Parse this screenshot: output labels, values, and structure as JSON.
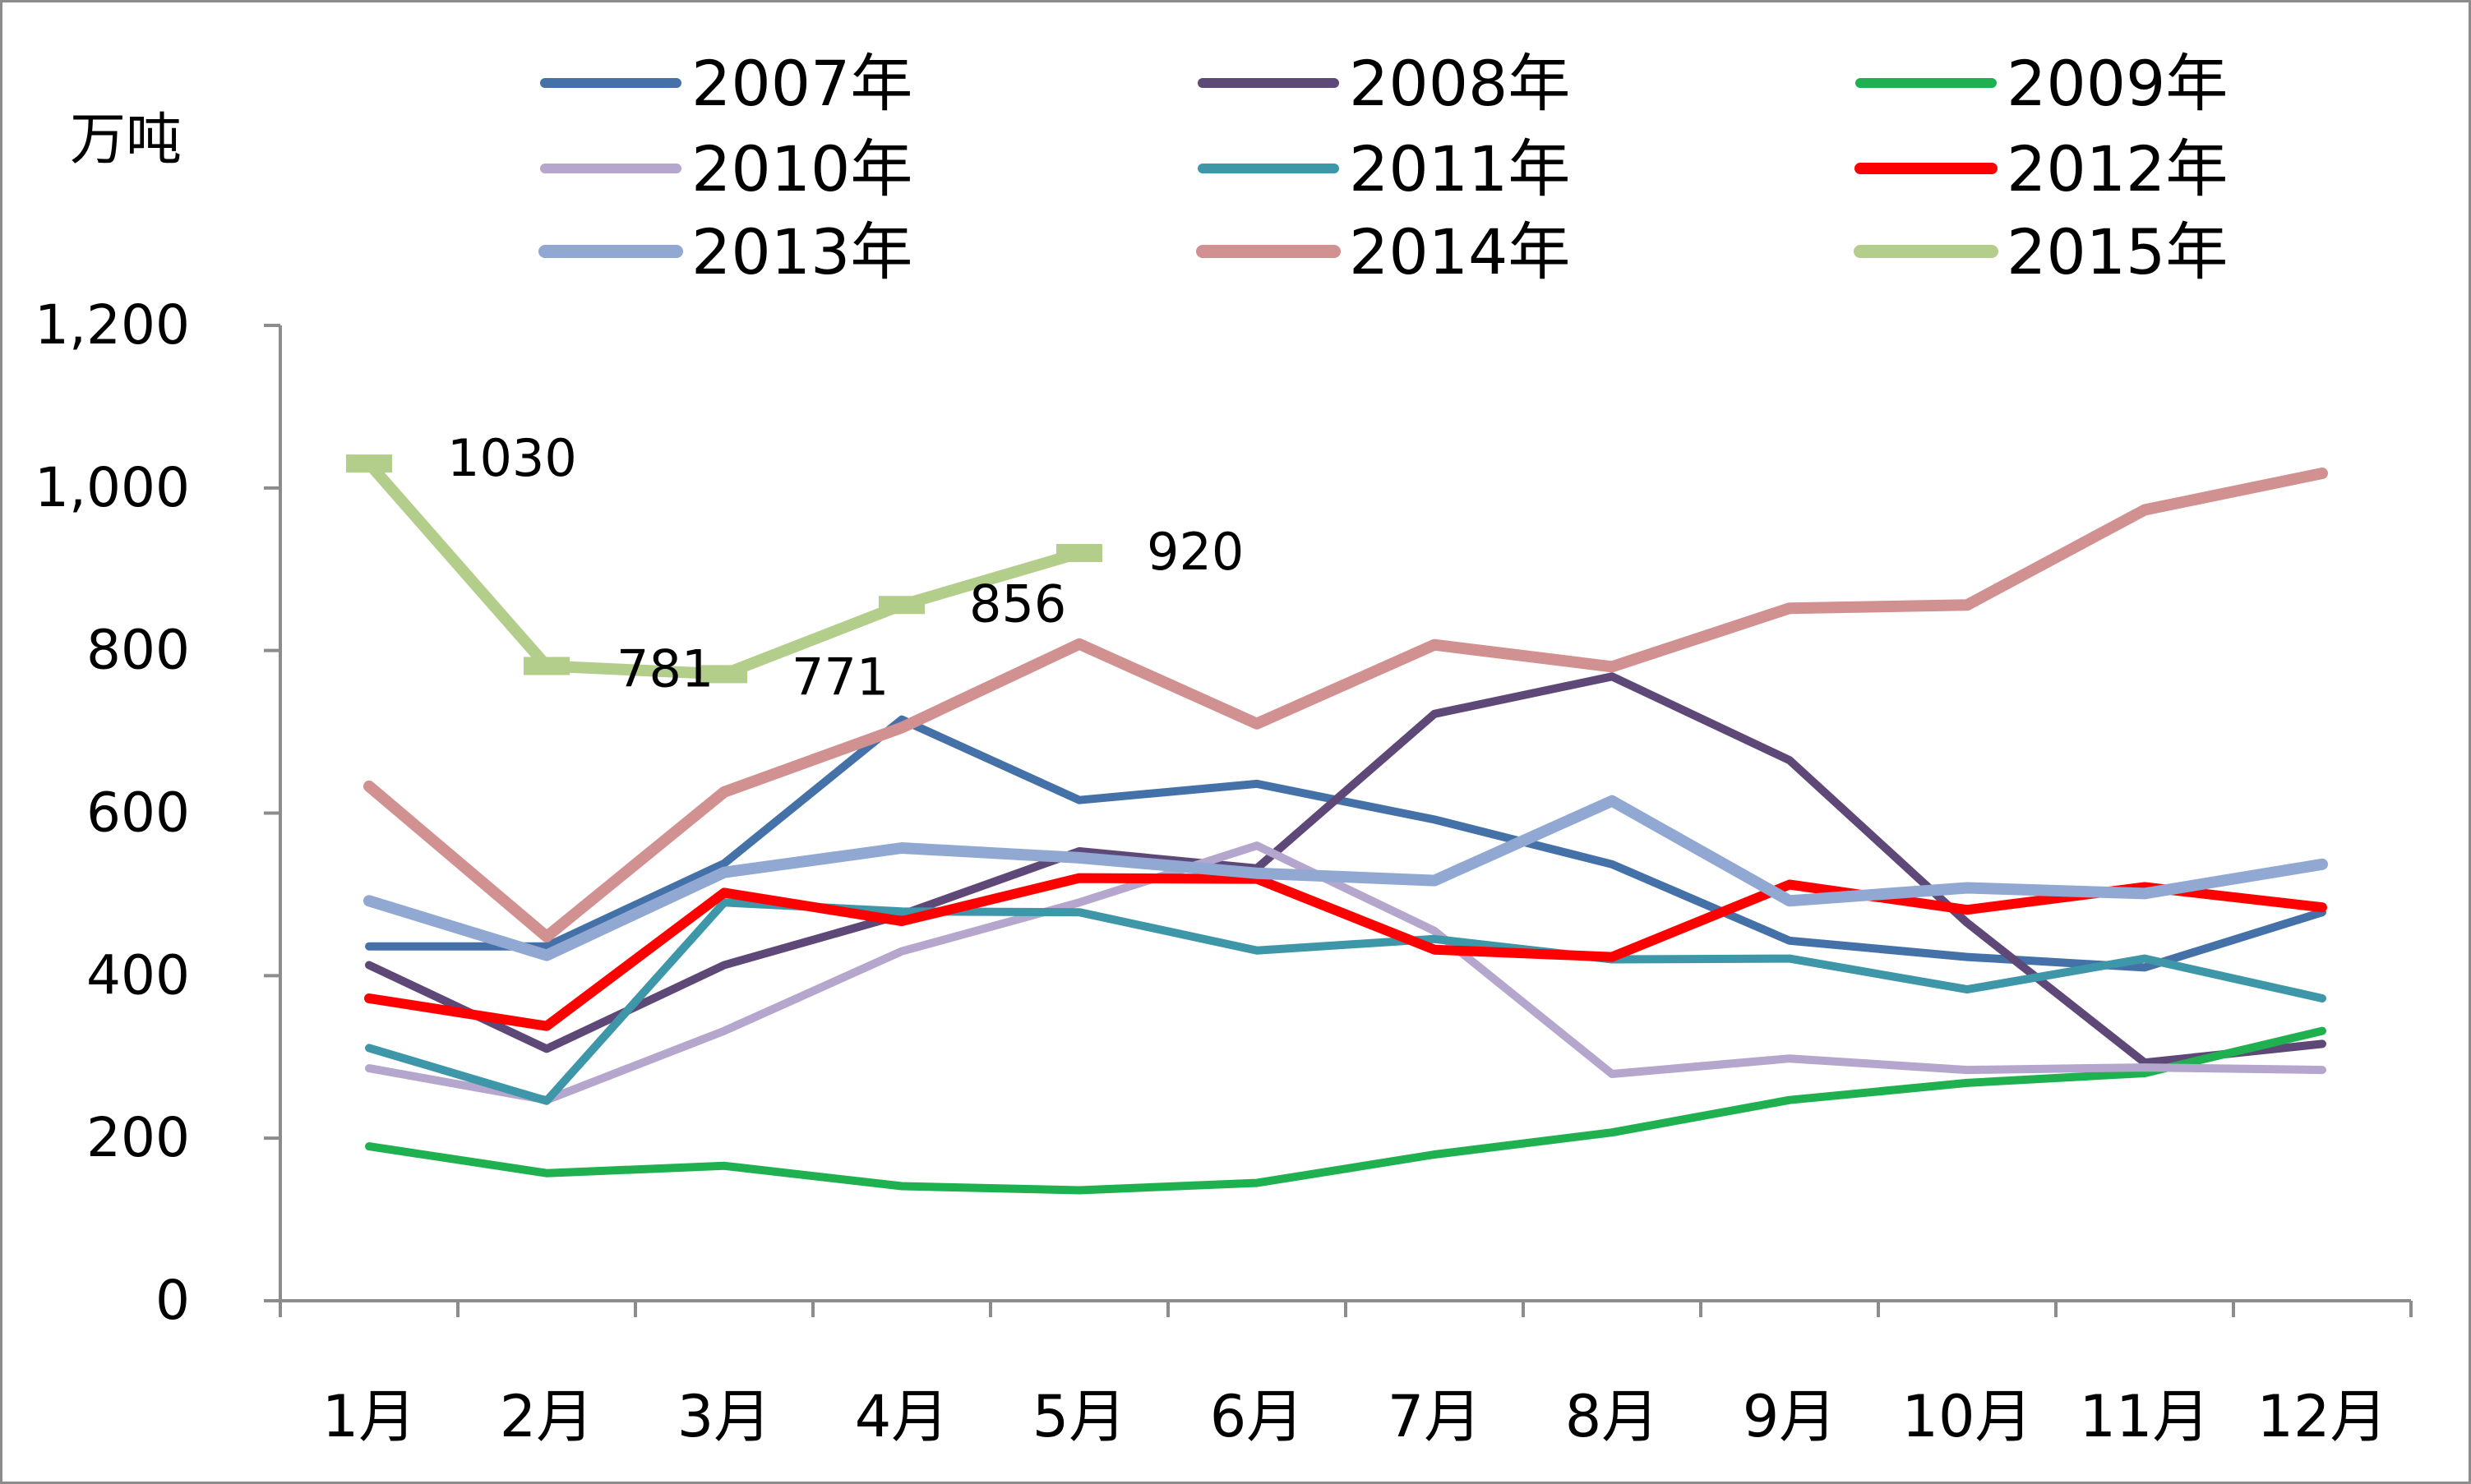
{
  "chart_data": {
    "type": "line",
    "ylabel": "万吨",
    "categories": [
      "1月",
      "2月",
      "3月",
      "4月",
      "5月",
      "6月",
      "7月",
      "8月",
      "9月",
      "10月",
      "11月",
      "12月"
    ],
    "ylim": [
      0,
      1200
    ],
    "yticks": [
      0,
      200,
      400,
      600,
      800,
      1000,
      1200
    ],
    "ytick_labels": [
      "0",
      "200",
      "400",
      "600",
      "800",
      "1,000",
      "1,200"
    ],
    "legend_position": "top",
    "grid": false,
    "series": [
      {
        "name": "2007年",
        "color": "#4471a8",
        "width": 10,
        "values": [
          436,
          436,
          538,
          715,
          616,
          636,
          592,
          537,
          443,
          423,
          410,
          478
        ]
      },
      {
        "name": "2008年",
        "color": "#5e4878",
        "width": 10,
        "values": [
          413,
          310,
          413,
          475,
          553,
          532,
          722,
          768,
          665,
          465,
          293,
          316
        ]
      },
      {
        "name": "2009年",
        "color": "#1fb14f",
        "width": 10,
        "values": [
          190,
          157,
          166,
          141,
          136,
          145,
          180,
          207,
          247,
          268,
          280,
          332
        ]
      },
      {
        "name": "2010年",
        "color": "#b4a6cc",
        "width": 10,
        "values": [
          286,
          247,
          332,
          430,
          490,
          560,
          455,
          279,
          298,
          284,
          287,
          284
        ]
      },
      {
        "name": "2011年",
        "color": "#3e96a9",
        "width": 10,
        "values": [
          311,
          246,
          490,
          479,
          478,
          431,
          445,
          420,
          421,
          383,
          421,
          372
        ]
      },
      {
        "name": "2012年",
        "color": "#ff0000",
        "width": 12,
        "values": [
          372,
          338,
          502,
          467,
          520,
          519,
          432,
          423,
          512,
          481,
          509,
          484
        ]
      },
      {
        "name": "2013年",
        "color": "#91a8d3",
        "width": 14,
        "values": [
          492,
          425,
          527,
          557,
          545,
          526,
          517,
          615,
          492,
          508,
          501,
          537
        ]
      },
      {
        "name": "2014年",
        "color": "#d19190",
        "width": 14,
        "values": [
          633,
          448,
          626,
          705,
          808,
          710,
          807,
          780,
          852,
          856,
          973,
          1018
        ]
      },
      {
        "name": "2015年",
        "color": "#b3cd8a",
        "width": 14,
        "values": [
          1030,
          781,
          771,
          856,
          920,
          null,
          null,
          null,
          null,
          null,
          null,
          null
        ]
      }
    ],
    "data_labels": [
      {
        "series": "2015年",
        "index": 0,
        "text": "1030"
      },
      {
        "series": "2015年",
        "index": 1,
        "text": "781"
      },
      {
        "series": "2015年",
        "index": 2,
        "text": "771"
      },
      {
        "series": "2015年",
        "index": 3,
        "text": "856"
      },
      {
        "series": "2015年",
        "index": 4,
        "text": "920"
      }
    ]
  }
}
